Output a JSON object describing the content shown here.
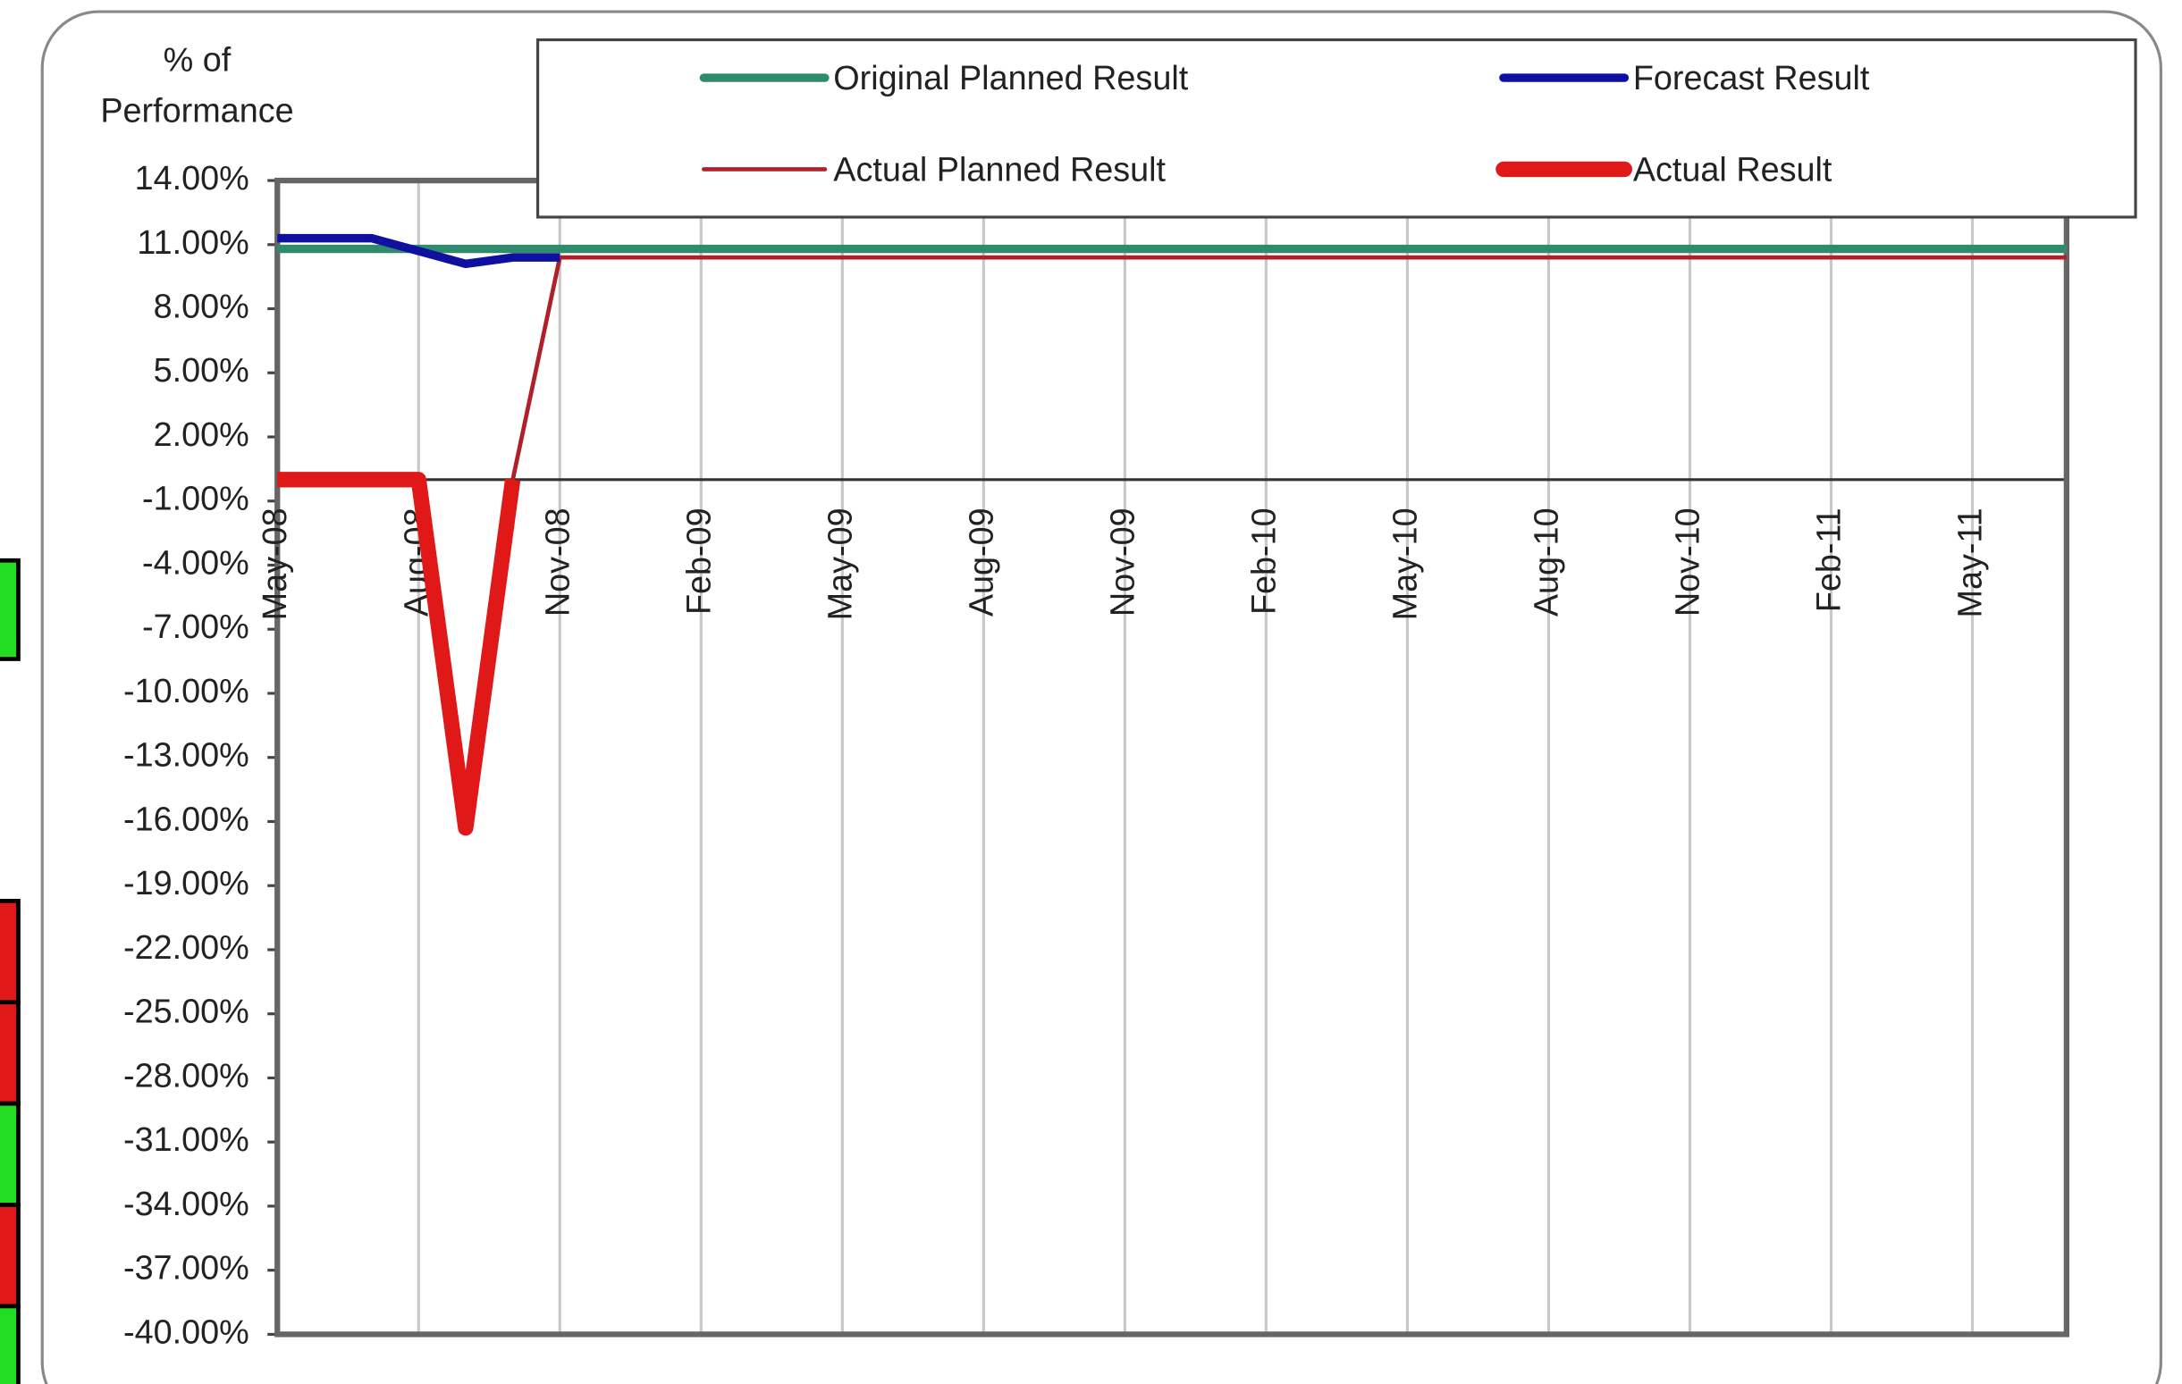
{
  "chart_data": {
    "type": "line",
    "y_label": "% of Performance",
    "categories": [
      "May-08",
      null,
      null,
      "Aug-08",
      null,
      null,
      "Nov-08",
      null,
      null,
      "Feb-09",
      null,
      null,
      "May-09",
      null,
      null,
      "Aug-09",
      null,
      null,
      "Nov-09",
      null,
      null,
      "Feb-10",
      null,
      null,
      "May-10",
      null,
      null,
      "Aug-10",
      null,
      null,
      "Nov-10",
      null,
      null,
      "Feb-11",
      null,
      null,
      "May-11",
      null,
      null
    ],
    "series": [
      {
        "name": "Original Planned Result",
        "color": "#2e8b6b",
        "width": 6,
        "values": [
          10.8,
          10.8,
          10.8,
          10.8,
          10.8,
          10.8,
          10.8,
          10.8,
          10.8,
          10.8,
          10.8,
          10.8,
          10.8,
          10.8,
          10.8,
          10.8,
          10.8,
          10.8,
          10.8,
          10.8,
          10.8,
          10.8,
          10.8,
          10.8,
          10.8,
          10.8,
          10.8,
          10.8,
          10.8,
          10.8,
          10.8,
          10.8,
          10.8,
          10.8,
          10.8,
          10.8,
          10.8,
          10.8,
          10.8
        ]
      },
      {
        "name": "Actual Planned Result",
        "color": "#b0202a",
        "width": 3,
        "values": [
          0,
          0,
          0,
          0,
          -16.3,
          0,
          10.4,
          10.4,
          10.4,
          10.4,
          10.4,
          10.4,
          10.4,
          10.4,
          10.4,
          10.4,
          10.4,
          10.4,
          10.4,
          10.4,
          10.4,
          10.4,
          10.4,
          10.4,
          10.4,
          10.4,
          10.4,
          10.4,
          10.4,
          10.4,
          10.4,
          10.4,
          10.4,
          10.4,
          10.4,
          10.4,
          10.4,
          10.4,
          10.4
        ]
      },
      {
        "name": "Forecast Result",
        "color": "#1010a0",
        "width": 6,
        "values": [
          11.3,
          11.3,
          11.3,
          10.7,
          10.1,
          10.4,
          10.4,
          null,
          null,
          null,
          null,
          null,
          null,
          null,
          null,
          null,
          null,
          null,
          null,
          null,
          null,
          null,
          null,
          null,
          null,
          null,
          null,
          null,
          null,
          null,
          null,
          null,
          null,
          null,
          null,
          null,
          null,
          null,
          null
        ]
      },
      {
        "name": "Actual Result",
        "color": "#e01818",
        "width": 11,
        "values": [
          0,
          0,
          0,
          0,
          -16.3,
          0,
          null,
          null,
          null,
          null,
          null,
          null,
          null,
          null,
          null,
          null,
          null,
          null,
          null,
          null,
          null,
          null,
          null,
          null,
          null,
          null,
          null,
          null,
          null,
          null,
          null,
          null,
          null,
          null,
          null,
          null,
          null,
          null,
          null
        ]
      }
    ],
    "ylim": [
      -40,
      14
    ],
    "yticks": [
      {
        "value": 14,
        "label": "14.00%"
      },
      {
        "value": 11,
        "label": "11.00%"
      },
      {
        "value": 8,
        "label": "8.00%"
      },
      {
        "value": 5,
        "label": "5.00%"
      },
      {
        "value": 2,
        "label": "2.00%"
      },
      {
        "value": -1,
        "label": "-1.00%"
      },
      {
        "value": -4,
        "label": "-4.00%"
      },
      {
        "value": -7,
        "label": "-7.00%"
      },
      {
        "value": -10,
        "label": "-10.00%"
      },
      {
        "value": -13,
        "label": "-13.00%"
      },
      {
        "value": -16,
        "label": "-16.00%"
      },
      {
        "value": -19,
        "label": "-19.00%"
      },
      {
        "value": -22,
        "label": "-22.00%"
      },
      {
        "value": -25,
        "label": "-25.00%"
      },
      {
        "value": -28,
        "label": "-28.00%"
      },
      {
        "value": -31,
        "label": "-31.00%"
      },
      {
        "value": -34,
        "label": "-34.00%"
      },
      {
        "value": -37,
        "label": "-37.00%"
      },
      {
        "value": -40,
        "label": "-40.00%"
      }
    ],
    "grid": true
  }
}
